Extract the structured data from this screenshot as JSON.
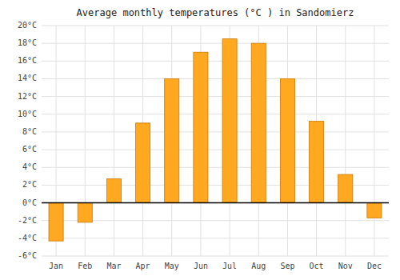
{
  "chart_data": {
    "type": "bar",
    "title": "Average monthly temperatures (°C ) in Sandomierz",
    "categories": [
      "Jan",
      "Feb",
      "Mar",
      "Apr",
      "May",
      "Jun",
      "Jul",
      "Aug",
      "Sep",
      "Oct",
      "Nov",
      "Dec"
    ],
    "values": [
      -4.3,
      -2.2,
      2.7,
      9.0,
      14.0,
      17.0,
      18.5,
      18.0,
      14.0,
      9.2,
      3.2,
      -1.7
    ],
    "color": "#FFA820",
    "ylim": [
      -6,
      20
    ],
    "yticks": [
      {
        "value": -6,
        "label": "-6°C"
      },
      {
        "value": -4,
        "label": "-4°C"
      },
      {
        "value": -2,
        "label": "-2°C"
      },
      {
        "value": 0,
        "label": "0°C"
      },
      {
        "value": 2,
        "label": "2°C"
      },
      {
        "value": 4,
        "label": "4°C"
      },
      {
        "value": 6,
        "label": "6°C"
      },
      {
        "value": 8,
        "label": "8°C"
      },
      {
        "value": 10,
        "label": "10°C"
      },
      {
        "value": 12,
        "label": "12°C"
      },
      {
        "value": 14,
        "label": "14°C"
      },
      {
        "value": 16,
        "label": "16°C"
      },
      {
        "value": 18,
        "label": "18°C"
      },
      {
        "value": 20,
        "label": "20°C"
      }
    ],
    "grid": true
  }
}
